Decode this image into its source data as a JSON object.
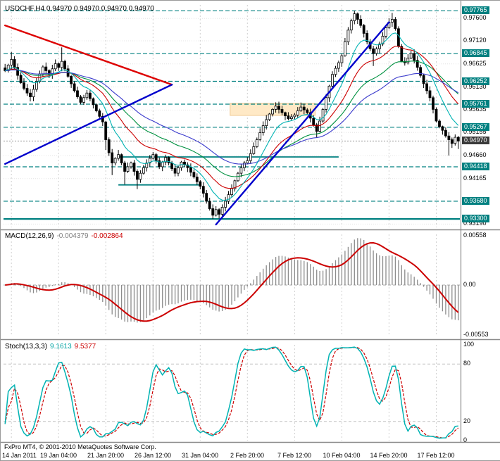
{
  "titles": {
    "main": "USDCHF,H4 0.94970 0.94970 0.94970 0.94970"
  },
  "indicators": {
    "macd": {
      "label": "MACD(12,26,9)",
      "value_main": "-0.004379",
      "value_signal": "-0.002864"
    },
    "stoch": {
      "label": "Stoch(13,3,3)",
      "value_main": "9.1613",
      "value_signal": "9.5377"
    }
  },
  "footer": {
    "copyright": "FxPro MT4, © 2001-2010 MetaQuotes Software Corp."
  },
  "colors": {
    "level_teal": "#008080",
    "candle_up_fill": "#ffffff",
    "candle_down_fill": "#000000",
    "candle_border": "#000000",
    "grid": "#cfcfcf",
    "hgrid": "#e4e4e4",
    "macd_hist": "#8c8c8c",
    "macd_signal": "#cc0000",
    "stoch_main": "#00b3b3",
    "stoch_signal": "#cc0000",
    "rect_fill": "#ffe9c6",
    "rect_border": "#f0c890",
    "separator": "#8a8a8a",
    "current_bg": "#3a3a3a",
    "current_line": "#9a9a9a"
  },
  "chart_data": {
    "type": "candlestick",
    "symbol": "USDCHF",
    "timeframe": "H4",
    "price_view": {
      "min": 0.9312,
      "max": 0.9789
    },
    "current_price": {
      "text": "0.94970",
      "value": 0.9497
    },
    "y_grid": [
      {
        "text": "0.97600",
        "value": 0.976
      },
      {
        "text": "0.97120",
        "value": 0.9712
      },
      {
        "text": "0.96625",
        "value": 0.96625
      },
      {
        "text": "0.96130",
        "value": 0.9613
      },
      {
        "text": "0.95635",
        "value": 0.95635
      },
      {
        "text": "0.95155",
        "value": 0.95155
      },
      {
        "text": "0.94660",
        "value": 0.9466
      },
      {
        "text": "0.94165",
        "value": 0.94165
      },
      {
        "text": "0.93190",
        "value": 0.9319
      }
    ],
    "horizontal_levels": [
      {
        "text": "0.97765",
        "value": 0.97765,
        "style": "dashed"
      },
      {
        "text": "0.96845",
        "value": 0.96845,
        "style": "dashed"
      },
      {
        "text": "0.96252",
        "value": 0.96252,
        "style": "dashed"
      },
      {
        "text": "0.95761",
        "value": 0.95761,
        "style": "dashed"
      },
      {
        "text": "0.95267",
        "value": 0.95267,
        "style": "dashed"
      },
      {
        "text": "0.94418",
        "value": 0.94418,
        "style": "dashed"
      },
      {
        "text": "0.93680",
        "value": 0.9368,
        "style": "dashed"
      },
      {
        "text": "0.93300",
        "value": 0.933,
        "style": "solid-thick"
      }
    ],
    "support_segments": [
      {
        "price": 0.9463,
        "from": 36,
        "to": 106
      },
      {
        "price": 0.9403,
        "from": 36,
        "to": 62
      }
    ],
    "rectangle_zone": {
      "from": 72,
      "to": 98,
      "price_low": 0.9552,
      "price_high": 0.9578
    },
    "trendlines": [
      {
        "from": [
          0,
          0.9745
        ],
        "to": [
          53,
          0.9618
        ],
        "color": "#dd0000",
        "width": 2.4
      },
      {
        "from": [
          0,
          0.9448
        ],
        "to": [
          53,
          0.9618
        ],
        "color": "#0000cc",
        "width": 2.4
      },
      {
        "from": [
          67,
          0.9318
        ],
        "to": [
          122,
          0.9752
        ],
        "color": "#0000cc",
        "width": 2.4
      }
    ],
    "moving_averages": [
      {
        "period": 34,
        "color": "#009140"
      },
      {
        "period": 21,
        "color": "#cc0000"
      },
      {
        "period": 50,
        "color": "#3a3acc"
      },
      {
        "period": 10,
        "color": "#00b3b3"
      }
    ],
    "x_labels": [
      {
        "text": "14 Jan 2011",
        "index": 2
      },
      {
        "text": "19 Jan 04:00",
        "index": 17
      },
      {
        "text": "21 Jan 20:00",
        "index": 32
      },
      {
        "text": "26 Jan 12:00",
        "index": 47
      },
      {
        "text": "31 Jan 04:00",
        "index": 62
      },
      {
        "text": "2 Feb 20:00",
        "index": 77
      },
      {
        "text": "7 Feb 12:00",
        "index": 92
      },
      {
        "text": "10 Feb 04:00",
        "index": 107
      },
      {
        "text": "14 Feb 20:00",
        "index": 122
      },
      {
        "text": "17 Feb 12:00",
        "index": 137
      }
    ],
    "candles": {
      "close": [
        0.9648,
        0.966,
        0.9672,
        0.9655,
        0.9638,
        0.9622,
        0.961,
        0.96,
        0.9592,
        0.9608,
        0.9625,
        0.9641,
        0.9656,
        0.9648,
        0.964,
        0.9652,
        0.9663,
        0.9655,
        0.9668,
        0.9652,
        0.9636,
        0.962,
        0.9605,
        0.9592,
        0.958,
        0.959,
        0.96,
        0.9588,
        0.9575,
        0.9562,
        0.955,
        0.9538,
        0.95,
        0.9472,
        0.945,
        0.946,
        0.9468,
        0.945,
        0.9432,
        0.9442,
        0.945,
        0.9432,
        0.9415,
        0.9428,
        0.944,
        0.945,
        0.946,
        0.9468,
        0.9455,
        0.9442,
        0.9452,
        0.9462,
        0.945,
        0.9438,
        0.9428,
        0.944,
        0.9452,
        0.9446,
        0.944,
        0.943,
        0.942,
        0.941,
        0.94,
        0.9385,
        0.9368,
        0.9352,
        0.9338,
        0.935,
        0.934,
        0.9355,
        0.9368,
        0.9382,
        0.9395,
        0.9412,
        0.9428,
        0.944,
        0.945,
        0.9455,
        0.947,
        0.9485,
        0.95,
        0.9515,
        0.953,
        0.9543,
        0.9555,
        0.9565,
        0.9572,
        0.9565,
        0.9558,
        0.9551,
        0.9545,
        0.9549,
        0.9553,
        0.9562,
        0.957,
        0.9564,
        0.9558,
        0.9546,
        0.9532,
        0.9518,
        0.954,
        0.9565,
        0.959,
        0.9615,
        0.964,
        0.9653,
        0.9665,
        0.968,
        0.971,
        0.9735,
        0.9755,
        0.977,
        0.9758,
        0.9745,
        0.9728,
        0.971,
        0.9695,
        0.9685,
        0.9695,
        0.9705,
        0.9722,
        0.974,
        0.9752,
        0.9758,
        0.9738,
        0.97,
        0.9668,
        0.9665,
        0.9675,
        0.9685,
        0.967,
        0.9655,
        0.9638,
        0.962,
        0.9605,
        0.959,
        0.9565,
        0.954,
        0.9528,
        0.952,
        0.9508,
        0.95,
        0.9492,
        0.9505,
        0.9497
      ],
      "extremes": {
        "2": {
          "h": 0.9688
        },
        "8": {
          "l": 0.9582
        },
        "16": {
          "h": 0.9672
        },
        "18": {
          "h": 0.9698
        },
        "32": {
          "l": 0.9478
        },
        "34": {
          "l": 0.9424
        },
        "38": {
          "l": 0.9404
        },
        "42": {
          "l": 0.9394
        },
        "66": {
          "l": 0.933
        },
        "68": {
          "l": 0.9331
        },
        "99": {
          "l": 0.9504
        },
        "111": {
          "h": 0.97765
        },
        "117": {
          "l": 0.9658
        },
        "123": {
          "h": 0.9772
        },
        "141": {
          "l": 0.9466
        },
        "144": {
          "l": 0.948
        }
      }
    },
    "macd": {
      "params": {
        "fast": 12,
        "slow": 26,
        "signal": 9
      },
      "axis_labels": [
        {
          "text": "0.00558",
          "pos": "top"
        },
        {
          "text": "0.00",
          "pos": "zero"
        },
        {
          "text": "-0.00553",
          "pos": "bottom"
        }
      ]
    },
    "stoch": {
      "params": {
        "k": 13,
        "d": 3,
        "slowing": 3
      },
      "level_lines": [
        80,
        20
      ],
      "axis_labels": [
        {
          "text": "100",
          "value": 100
        },
        {
          "text": "80",
          "value": 80
        },
        {
          "text": "20",
          "value": 20
        },
        {
          "text": "0",
          "value": 0
        }
      ]
    }
  }
}
